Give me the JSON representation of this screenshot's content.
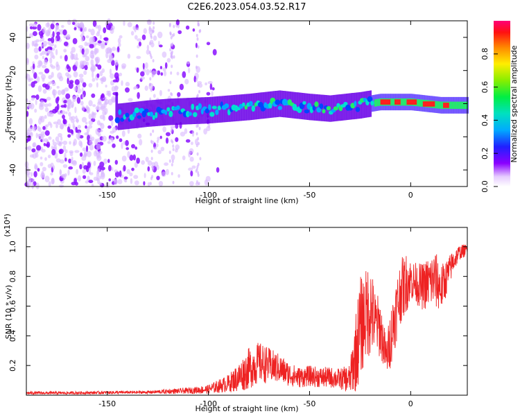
{
  "title": "C2E6.2023.054.03.52.R17",
  "chart_data": [
    {
      "type": "heatmap",
      "xlabel": "Height of straight line (km)",
      "ylabel": "Frequency (Hz)",
      "xlim": [
        -190,
        28
      ],
      "ylim": [
        -50,
        50
      ],
      "xticks": [
        -150,
        -100,
        -50,
        0
      ],
      "yticks": [
        -40,
        -20,
        0,
        20,
        40
      ],
      "colorbar": {
        "label": "Normalized spectral amplitude",
        "range": [
          0,
          1
        ],
        "ticks": [
          0.0,
          0.2,
          0.4,
          0.6,
          0.8
        ]
      },
      "ridge": [
        {
          "x": -145,
          "y": -8
        },
        {
          "x": -130,
          "y": -6
        },
        {
          "x": -120,
          "y": -5
        },
        {
          "x": -100,
          "y": -4
        },
        {
          "x": -80,
          "y": -2
        },
        {
          "x": -65,
          "y": 0
        },
        {
          "x": -50,
          "y": -2
        },
        {
          "x": -40,
          "y": -3
        },
        {
          "x": -25,
          "y": -1
        },
        {
          "x": -15,
          "y": 1
        },
        {
          "x": 0,
          "y": 1
        },
        {
          "x": 15,
          "y": -1
        },
        {
          "x": 28,
          "y": -1
        }
      ],
      "grid": false
    },
    {
      "type": "line",
      "xlabel": "Height of straight line (km)",
      "ylabel": "SNR (10 * v/v)",
      "y_multiplier": "(x10⁴)",
      "xlim": [
        -190,
        28
      ],
      "ylim": [
        0,
        1.13
      ],
      "xticks": [
        -150,
        -100,
        -50,
        0
      ],
      "yticks": [
        0.2,
        0.4,
        0.6,
        0.8,
        1.0
      ],
      "series": [
        {
          "color": "#ee2222",
          "x": [
            -190,
            -170,
            -150,
            -130,
            -120,
            -110,
            -100,
            -90,
            -85,
            -80,
            -75,
            -70,
            -65,
            -60,
            -55,
            -50,
            -45,
            -40,
            -35,
            -30,
            -27,
            -25,
            -22,
            -20,
            -18,
            -15,
            -12,
            -10,
            -8,
            -5,
            -2,
            0,
            3,
            6,
            9,
            12,
            15,
            18,
            21,
            24,
            28
          ],
          "y": [
            0.015,
            0.015,
            0.018,
            0.02,
            0.025,
            0.03,
            0.04,
            0.08,
            0.12,
            0.18,
            0.22,
            0.2,
            0.18,
            0.14,
            0.12,
            0.13,
            0.12,
            0.12,
            0.11,
            0.11,
            0.3,
            0.45,
            0.55,
            0.6,
            0.5,
            0.45,
            0.25,
            0.38,
            0.52,
            0.7,
            0.76,
            0.78,
            0.75,
            0.73,
            0.76,
            0.78,
            0.72,
            0.8,
            0.9,
            0.96,
            0.98
          ],
          "spread": [
            0.01,
            0.01,
            0.01,
            0.01,
            0.015,
            0.02,
            0.03,
            0.06,
            0.1,
            0.14,
            0.14,
            0.12,
            0.1,
            0.08,
            0.07,
            0.07,
            0.07,
            0.07,
            0.07,
            0.1,
            0.28,
            0.35,
            0.3,
            0.35,
            0.22,
            0.2,
            0.12,
            0.2,
            0.22,
            0.22,
            0.2,
            0.14,
            0.14,
            0.16,
            0.18,
            0.2,
            0.16,
            0.12,
            0.08,
            0.05,
            0.04
          ]
        }
      ],
      "grid": false
    }
  ]
}
